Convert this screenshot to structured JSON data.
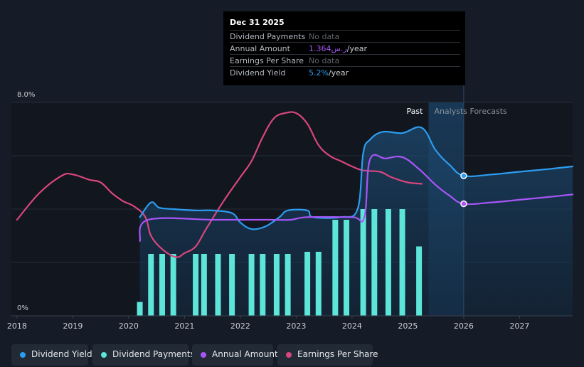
{
  "chart_data": {
    "type": "line",
    "x_axis": {
      "range": [
        2017.9,
        2027.95
      ],
      "ticks": [
        "2018",
        "2019",
        "2020",
        "2021",
        "2022",
        "2023",
        "2024",
        "2025",
        "2026",
        "2027"
      ]
    },
    "y_axis": {
      "range": [
        0,
        8.0
      ],
      "top_label": "8.0%",
      "bottom_label": "0%"
    },
    "past_label": "Past",
    "forecast_label": "Analysts Forecasts",
    "forecast_start": 2025.37,
    "highlight_date": 2026.0,
    "series": [
      {
        "name": "Earnings Per Share",
        "color": "#d9467d",
        "points": [
          [
            2018.0,
            3.6
          ],
          [
            2018.4,
            4.6
          ],
          [
            2018.8,
            5.25
          ],
          [
            2019.0,
            5.3
          ],
          [
            2019.3,
            5.1
          ],
          [
            2019.5,
            5.0
          ],
          [
            2019.7,
            4.6
          ],
          [
            2019.9,
            4.3
          ],
          [
            2020.1,
            4.1
          ],
          [
            2020.3,
            3.7
          ],
          [
            2020.4,
            3.0
          ],
          [
            2020.6,
            2.5
          ],
          [
            2020.85,
            2.2
          ],
          [
            2021.0,
            2.35
          ],
          [
            2021.2,
            2.6
          ],
          [
            2021.4,
            3.3
          ],
          [
            2021.7,
            4.3
          ],
          [
            2022.0,
            5.2
          ],
          [
            2022.2,
            5.8
          ],
          [
            2022.4,
            6.7
          ],
          [
            2022.6,
            7.4
          ],
          [
            2022.8,
            7.6
          ],
          [
            2023.0,
            7.6
          ],
          [
            2023.2,
            7.2
          ],
          [
            2023.4,
            6.4
          ],
          [
            2023.6,
            6.0
          ],
          [
            2023.8,
            5.8
          ],
          [
            2024.0,
            5.6
          ],
          [
            2024.2,
            5.45
          ],
          [
            2024.5,
            5.4
          ],
          [
            2024.7,
            5.2
          ],
          [
            2025.0,
            5.0
          ],
          [
            2025.25,
            4.95
          ]
        ]
      },
      {
        "name": "Dividend Yield",
        "color": "#2d9cf0",
        "points": [
          [
            2020.2,
            3.7
          ],
          [
            2020.4,
            4.25
          ],
          [
            2020.55,
            4.05
          ],
          [
            2020.8,
            4.0
          ],
          [
            2021.2,
            3.95
          ],
          [
            2021.5,
            3.95
          ],
          [
            2021.85,
            3.85
          ],
          [
            2022.0,
            3.5
          ],
          [
            2022.2,
            3.25
          ],
          [
            2022.45,
            3.35
          ],
          [
            2022.7,
            3.7
          ],
          [
            2022.85,
            3.95
          ],
          [
            2023.2,
            3.95
          ],
          [
            2023.3,
            3.7
          ],
          [
            2023.8,
            3.7
          ],
          [
            2024.1,
            4.0
          ],
          [
            2024.2,
            6.1
          ],
          [
            2024.32,
            6.6
          ],
          [
            2024.55,
            6.9
          ],
          [
            2024.9,
            6.85
          ],
          [
            2025.25,
            7.05
          ],
          [
            2025.5,
            6.2
          ],
          [
            2025.75,
            5.65
          ],
          [
            2026.0,
            5.25
          ],
          [
            2026.5,
            5.3
          ],
          [
            2027.0,
            5.4
          ],
          [
            2027.5,
            5.5
          ],
          [
            2027.95,
            5.6
          ]
        ]
      },
      {
        "name": "Annual Amount",
        "color": "#a855f7",
        "points": [
          [
            2020.2,
            2.8
          ],
          [
            2020.35,
            3.6
          ],
          [
            2021.5,
            3.6
          ],
          [
            2022.0,
            3.6
          ],
          [
            2022.5,
            3.6
          ],
          [
            2022.9,
            3.6
          ],
          [
            2023.2,
            3.7
          ],
          [
            2024.0,
            3.7
          ],
          [
            2024.22,
            3.7
          ],
          [
            2024.32,
            5.85
          ],
          [
            2024.6,
            5.9
          ],
          [
            2024.9,
            5.95
          ],
          [
            2025.2,
            5.5
          ],
          [
            2025.5,
            4.9
          ],
          [
            2025.75,
            4.5
          ],
          [
            2026.0,
            4.2
          ],
          [
            2026.5,
            4.25
          ],
          [
            2027.0,
            4.35
          ],
          [
            2027.5,
            4.45
          ],
          [
            2027.95,
            4.55
          ]
        ]
      }
    ],
    "dividend_payments": {
      "name": "Dividend Payments",
      "color": "#5ce5d8",
      "ymax": 2.0,
      "bars": [
        [
          2020.2,
          0.13
        ],
        [
          2020.4,
          0.58
        ],
        [
          2020.6,
          0.58
        ],
        [
          2020.8,
          0.58
        ],
        [
          2021.2,
          0.58
        ],
        [
          2021.35,
          0.58
        ],
        [
          2021.6,
          0.58
        ],
        [
          2021.85,
          0.58
        ],
        [
          2022.2,
          0.58
        ],
        [
          2022.4,
          0.58
        ],
        [
          2022.65,
          0.58
        ],
        [
          2022.85,
          0.58
        ],
        [
          2023.2,
          0.6
        ],
        [
          2023.4,
          0.6
        ],
        [
          2023.7,
          0.9
        ],
        [
          2023.9,
          0.9
        ],
        [
          2024.2,
          1.0
        ],
        [
          2024.4,
          1.0
        ],
        [
          2024.65,
          1.0
        ],
        [
          2024.9,
          1.0
        ],
        [
          2025.2,
          0.65
        ]
      ]
    },
    "tooltip": {
      "date": "Dec 31 2025",
      "rows": [
        {
          "label": "Dividend Payments",
          "value": "No data",
          "unit": ""
        },
        {
          "label": "Annual Amount",
          "value": "1.364ر.س",
          "unit": "/year"
        },
        {
          "label": "Earnings Per Share",
          "value": "No data",
          "unit": ""
        },
        {
          "label": "Dividend Yield",
          "value": "5.2%",
          "unit": "/year"
        }
      ]
    }
  },
  "legend": [
    {
      "label": "Dividend Yield",
      "color": "#2d9cf0"
    },
    {
      "label": "Dividend Payments",
      "color": "#5ce5d8"
    },
    {
      "label": "Annual Amount",
      "color": "#a855f7"
    },
    {
      "label": "Earnings Per Share",
      "color": "#d9467d"
    }
  ]
}
